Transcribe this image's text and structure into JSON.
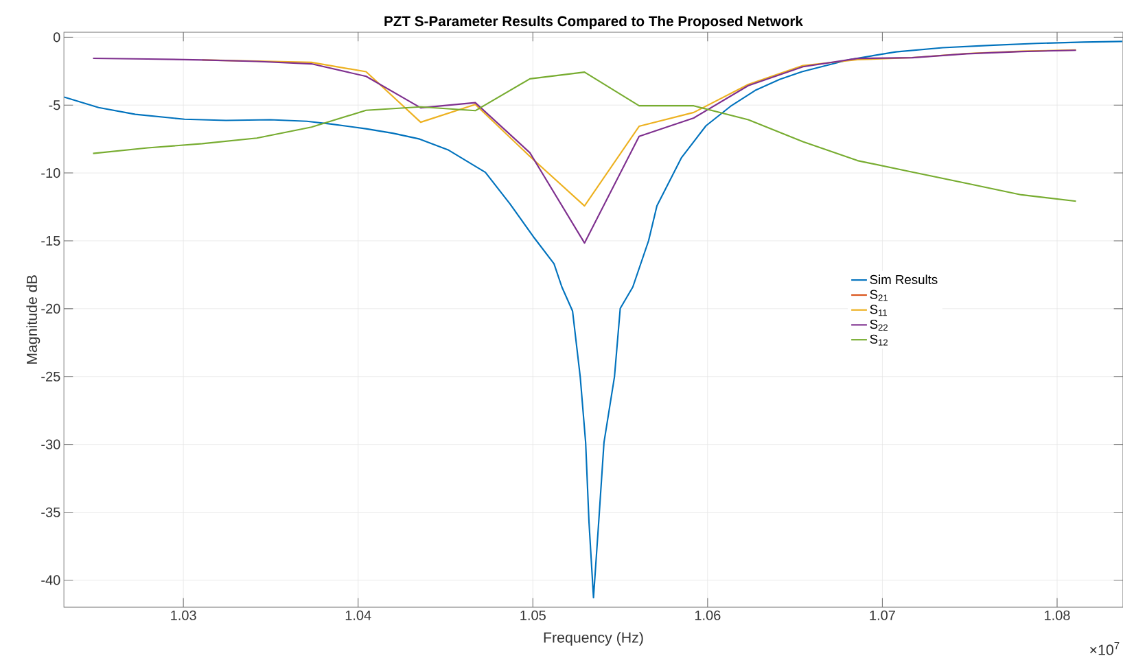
{
  "chart_data": {
    "type": "line",
    "title": "PZT S-Parameter Results Compared to The Proposed Network",
    "xlabel": "Frequency (Hz)",
    "ylabel": "Magnitude dB",
    "annotations": [
      "×10$^{7}$"
    ],
    "xlim": [
      1.02316,
      1.08377
    ],
    "ylim": [
      -42,
      0.37
    ],
    "xticks": [
      1.03,
      1.04,
      1.05,
      1.06,
      1.07,
      1.08
    ],
    "yticks": [
      -40,
      -35,
      -30,
      -25,
      -20,
      -15,
      -10,
      -5,
      0
    ],
    "grid": true,
    "legend": "right",
    "marker": "none",
    "line_style": "solid",
    "x": [
      1.02483,
      1.027955,
      1.03108,
      1.034205,
      1.03733,
      1.040455,
      1.04358,
      1.046705,
      1.04983,
      1.052955,
      1.05608,
      1.059205,
      1.06233,
      1.065455,
      1.06858,
      1.071705,
      1.07483,
      1.077955,
      1.08108
    ],
    "series": [
      {
        "name": "Sim Results",
        "color": "#0072bd",
        "x": [
          1.02318,
          1.02515,
          1.02725,
          1.03006,
          1.03244,
          1.03497,
          1.03707,
          1.03848,
          1.04044,
          1.04198,
          1.04352,
          1.04518,
          1.04728,
          1.04869,
          1.05009,
          1.05121,
          1.05166,
          1.05227,
          1.05271,
          1.05302,
          1.05321,
          1.05347,
          1.05377,
          1.05407,
          1.05467,
          1.055,
          1.05572,
          1.05662,
          1.0571,
          1.05851,
          1.05991,
          1.06131,
          1.06272,
          1.06412,
          1.0654,
          1.06809,
          1.07077,
          1.07346,
          1.07614,
          1.07883,
          1.08151,
          1.08373
        ],
        "values": [
          -4.41,
          -5.18,
          -5.68,
          -6.04,
          -6.13,
          -6.08,
          -6.19,
          -6.4,
          -6.74,
          -7.07,
          -7.5,
          -8.32,
          -9.95,
          -12.28,
          -14.8,
          -16.69,
          -18.4,
          -20.17,
          -25.02,
          -29.86,
          -35.68,
          -41.3,
          -35.68,
          -29.86,
          -25.02,
          -19.98,
          -18.4,
          -15.0,
          -12.42,
          -8.86,
          -6.52,
          -5.09,
          -3.92,
          -3.11,
          -2.54,
          -1.65,
          -1.08,
          -0.77,
          -0.6,
          -0.45,
          -0.36,
          -0.31
        ]
      },
      {
        "name": "S$_{21}$",
        "color": "#d95319",
        "values": [
          null,
          null,
          null,
          null,
          null,
          null,
          null,
          null,
          null,
          null,
          null,
          null,
          null,
          null,
          null,
          null,
          null,
          null,
          null
        ]
      },
      {
        "name": "S$_{11}$",
        "color": "#edb120",
        "values": [
          null,
          null,
          -1.67,
          -1.76,
          -1.85,
          -2.54,
          -6.26,
          -4.95,
          -8.78,
          -12.43,
          -6.56,
          -5.54,
          -3.47,
          -2.08,
          -1.65,
          -1.5,
          -1.2,
          -1.03,
          -0.94
        ]
      },
      {
        "name": "S$_{22}$",
        "color": "#7e2f8e",
        "values": [
          -1.55,
          -1.6,
          -1.67,
          -1.78,
          -1.96,
          -2.88,
          -5.2,
          -4.82,
          -8.51,
          -15.16,
          -7.3,
          -5.95,
          -3.56,
          -2.17,
          -1.56,
          -1.51,
          -1.22,
          -1.05,
          -0.96
        ]
      },
      {
        "name": "S$_{12}$",
        "color": "#77ac30",
        "values": [
          -8.56,
          -8.15,
          -7.84,
          -7.43,
          -6.62,
          -5.38,
          -5.13,
          -5.41,
          -3.06,
          -2.57,
          -5.05,
          -5.05,
          -6.08,
          -7.7,
          -9.09,
          -9.93,
          -10.77,
          -11.61,
          -12.08
        ]
      }
    ]
  }
}
